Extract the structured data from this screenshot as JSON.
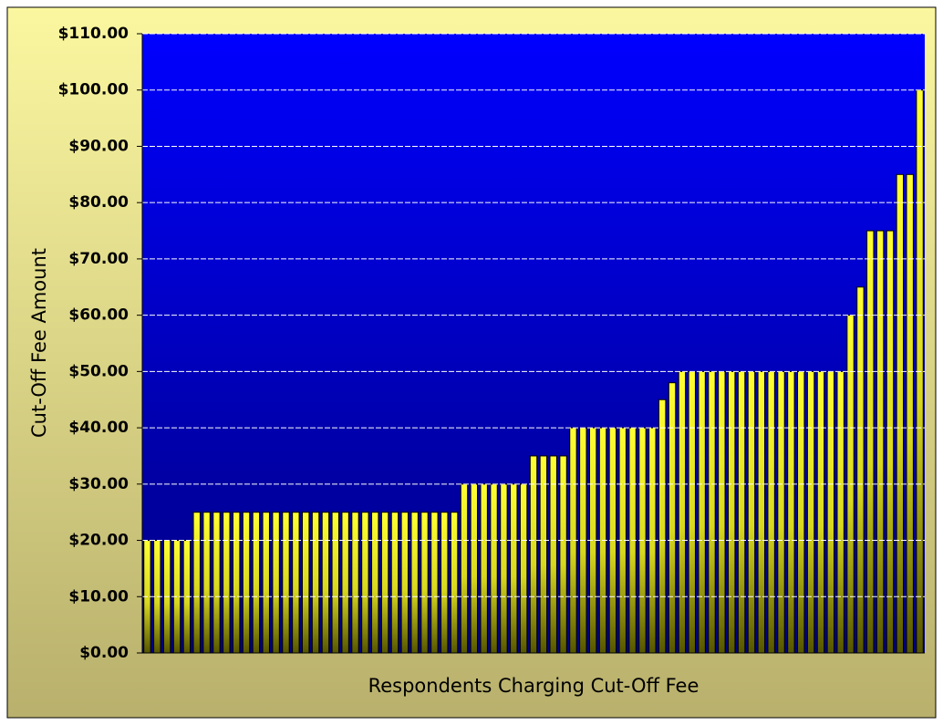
{
  "chart_data": {
    "type": "bar",
    "ylabel": "Cut-Off Fee Amount",
    "xlabel": "Respondents Charging Cut-Off Fee",
    "color": "#ffff00",
    "values": [
      20,
      20,
      20,
      20,
      20,
      25,
      25,
      25,
      25,
      25,
      25,
      25,
      25,
      25,
      25,
      25,
      25,
      25,
      25,
      25,
      25,
      25,
      25,
      25,
      25,
      25,
      25,
      25,
      25,
      25,
      25,
      25,
      30,
      30,
      30,
      30,
      30,
      30,
      30,
      35,
      35,
      35,
      35,
      40,
      40,
      40,
      40,
      40,
      40,
      40,
      40,
      40,
      45,
      48,
      50,
      50,
      50,
      50,
      50,
      50,
      50,
      50,
      50,
      50,
      50,
      50,
      50,
      50,
      50,
      50,
      50,
      60,
      65,
      75,
      75,
      75,
      85,
      85,
      100
    ],
    "ylim": [
      0,
      110
    ],
    "yticks": [
      {
        "value": 0,
        "label": "$0.00"
      },
      {
        "value": 10,
        "label": "$10.00"
      },
      {
        "value": 20,
        "label": "$20.00"
      },
      {
        "value": 30,
        "label": "$30.00"
      },
      {
        "value": 40,
        "label": "$40.00"
      },
      {
        "value": 50,
        "label": "$50.00"
      },
      {
        "value": 60,
        "label": "$60.00"
      },
      {
        "value": 70,
        "label": "$70.00"
      },
      {
        "value": 80,
        "label": "$80.00"
      },
      {
        "value": 90,
        "label": "$90.00"
      },
      {
        "value": 100,
        "label": "$100.00"
      },
      {
        "value": 110,
        "label": "$110.00"
      }
    ],
    "grid": true
  }
}
